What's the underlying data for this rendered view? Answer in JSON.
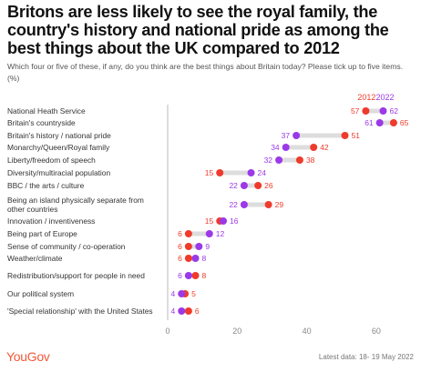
{
  "title": "Britons are less likely to see the royal family, the country's history and national pride as among the best things about the UK compared to 2012",
  "subtitle": "Which four or five of these, if any, do you think are the best things about Britain today? Please tick up to five items. (%)",
  "logo_text": "YouGov",
  "footnote": "Latest data: 18- 19 May 2022",
  "colors": {
    "series_2012": "#ef3b2c",
    "series_2022": "#9b39e8",
    "connector": "#dddddd",
    "axis": "#bbbbbb",
    "label_text": "#333333",
    "tick_text": "#888888",
    "logo": "#f05a3a"
  },
  "chart_data": {
    "type": "dot-plot",
    "categories": [
      "National Heath Service",
      "Britain's countryside",
      "Britain's history / national pride",
      "Monarchy/Queen/Royal family",
      "Liberty/freedom of speech",
      "Diversity/multiracial population",
      "BBC / the arts / culture",
      "Being an island physically separate from other countries",
      "Innovation / inventiveness",
      "Being part of Europe",
      "Sense of community / co-operation",
      "Weather/climate",
      "Redistribution/support for people in need",
      "Our political system",
      "'Special relationship' with the United States"
    ],
    "series": [
      {
        "name": "2012",
        "values": [
          57,
          65,
          51,
          42,
          38,
          15,
          26,
          29,
          15,
          6,
          6,
          6,
          8,
          5,
          6
        ]
      },
      {
        "name": "2022",
        "values": [
          62,
          61,
          37,
          34,
          32,
          24,
          22,
          22,
          16,
          12,
          9,
          8,
          6,
          4,
          4
        ]
      }
    ],
    "xlim": [
      0,
      70
    ],
    "xticks": [
      0,
      20,
      40,
      60
    ],
    "legend_position": "top-right",
    "grid": false
  }
}
